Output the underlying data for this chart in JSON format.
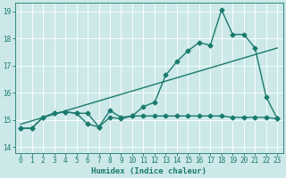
{
  "xlabel": "Humidex (Indice chaleur)",
  "xlim": [
    -0.5,
    23.5
  ],
  "ylim": [
    13.8,
    19.3
  ],
  "yticks": [
    14,
    15,
    16,
    17,
    18,
    19
  ],
  "xticks": [
    0,
    1,
    2,
    3,
    4,
    5,
    6,
    7,
    8,
    9,
    10,
    11,
    12,
    13,
    14,
    15,
    16,
    17,
    18,
    19,
    20,
    21,
    22,
    23
  ],
  "bg_color": "#cce8e8",
  "line_color": "#1a7a6e",
  "grid_color": "#ffffff",
  "line1_x": [
    0,
    1,
    2,
    3,
    4,
    5,
    6,
    7,
    8,
    9,
    10,
    11,
    12,
    13,
    14,
    15,
    16,
    17,
    18,
    19,
    20,
    21,
    22,
    23
  ],
  "line1_y": [
    14.7,
    14.7,
    15.1,
    15.25,
    15.3,
    15.25,
    14.85,
    14.75,
    15.1,
    15.05,
    15.15,
    15.15,
    15.15,
    15.15,
    15.15,
    15.15,
    15.15,
    15.15,
    15.15,
    15.1,
    15.1,
    15.1,
    15.1,
    15.05
  ],
  "line2_x": [
    0,
    1,
    2,
    3,
    4,
    5,
    6,
    7,
    8,
    9,
    10,
    11,
    12,
    13,
    14,
    15,
    16,
    17,
    18,
    19,
    20,
    21,
    22,
    23
  ],
  "line2_y": [
    14.7,
    14.7,
    15.1,
    15.25,
    15.3,
    15.25,
    15.25,
    14.75,
    15.35,
    15.1,
    15.15,
    15.5,
    15.65,
    16.65,
    17.15,
    17.55,
    17.85,
    17.75,
    19.05,
    18.15,
    18.15,
    17.65,
    15.85,
    15.05
  ],
  "line3_x": [
    0,
    23
  ],
  "line3_y": [
    14.85,
    17.65
  ],
  "marker_size": 2.5,
  "line_width": 1.0
}
